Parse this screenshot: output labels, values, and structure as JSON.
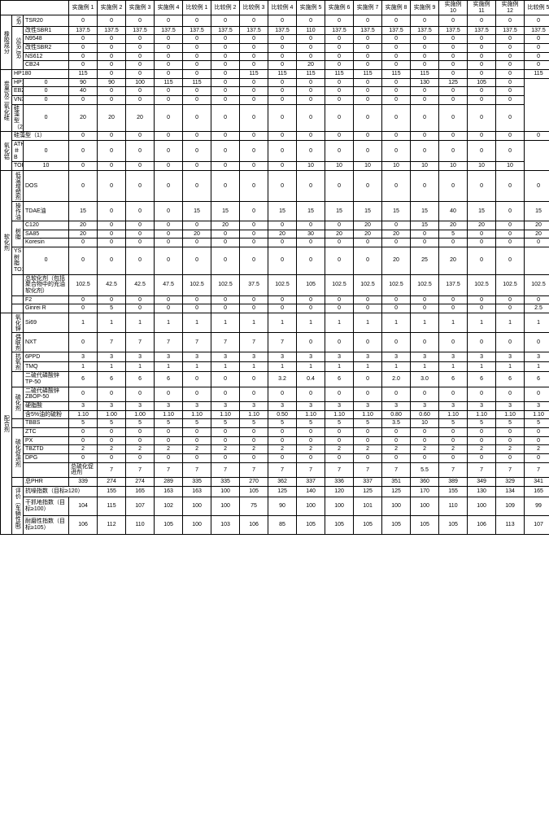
{
  "columns": [
    "实施例 1",
    "实施例 2",
    "实施例 3",
    "实施例 4",
    "比较例 1",
    "比较例 2",
    "比较例 3",
    "比较例 4",
    "实施例 5",
    "实施例 6",
    "实施例 7",
    "实施例 8",
    "实施例 9",
    "实施例 10",
    "实施例 11",
    "实施例 12",
    "比较例 5"
  ],
  "sections": [
    {
      "cat": "橡胶成分",
      "catSpan": 6,
      "group": "NR",
      "groupSpan": 1,
      "label": "TSR20",
      "vals": [
        "0",
        "0",
        "0",
        "0",
        "0",
        "0",
        "0",
        "0",
        "0",
        "0",
        "0",
        "0",
        "0",
        "0",
        "0",
        "0",
        "0"
      ]
    },
    {
      "group": "SBR,BR",
      "groupSpan": 5,
      "label": "改性SBR1",
      "vals": [
        "137.5",
        "137.5",
        "137.5",
        "137.5",
        "137.5",
        "137.5",
        "137.5",
        "137.5",
        "110",
        "137.5",
        "137.5",
        "137.5",
        "137.5",
        "137.5",
        "137.5",
        "137.5",
        "137.5"
      ]
    },
    {
      "label": "N9548",
      "vals": [
        "0",
        "0",
        "0",
        "0",
        "0",
        "0",
        "0",
        "0",
        "0",
        "0",
        "0",
        "0",
        "0",
        "0",
        "0",
        "0",
        "0"
      ]
    },
    {
      "label": "改性SBR2",
      "vals": [
        "0",
        "0",
        "0",
        "0",
        "0",
        "0",
        "0",
        "0",
        "0",
        "0",
        "0",
        "0",
        "0",
        "0",
        "0",
        "0",
        "0"
      ]
    },
    {
      "label": "NS612",
      "vals": [
        "0",
        "0",
        "0",
        "0",
        "0",
        "0",
        "0",
        "0",
        "0",
        "0",
        "0",
        "0",
        "0",
        "0",
        "0",
        "0",
        "0"
      ]
    },
    {
      "label": "CB24",
      "vals": [
        "0",
        "0",
        "0",
        "0",
        "0",
        "0",
        "0",
        "0",
        "20",
        "0",
        "0",
        "0",
        "0",
        "0",
        "0",
        "0",
        "0"
      ]
    },
    {
      "cat": "炭黑及二氧化硅",
      "catSpan": 5,
      "label": "HP180",
      "vals": [
        "115",
        "0",
        "0",
        "0",
        "0",
        "0",
        "115",
        "115",
        "115",
        "115",
        "115",
        "115",
        "115",
        "0",
        "0",
        "0",
        "115"
      ]
    },
    {
      "label": "HP160",
      "vals": [
        "0",
        "90",
        "90",
        "100",
        "115",
        "115",
        "0",
        "0",
        "0",
        "0",
        "0",
        "0",
        "0",
        "130",
        "125",
        "105",
        "0"
      ]
    },
    {
      "label": "EB201",
      "vals": [
        "0",
        "40",
        "0",
        "0",
        "0",
        "0",
        "0",
        "0",
        "0",
        "0",
        "0",
        "0",
        "0",
        "0",
        "0",
        "0",
        "0"
      ]
    },
    {
      "label": "VN3",
      "vals": [
        "0",
        "0",
        "0",
        "0",
        "0",
        "0",
        "0",
        "0",
        "0",
        "0",
        "0",
        "0",
        "0",
        "0",
        "0",
        "0",
        "0"
      ]
    },
    {
      "label": "硅藻型（2）",
      "vals": [
        "0",
        "20",
        "20",
        "20",
        "0",
        "0",
        "0",
        "0",
        "0",
        "0",
        "0",
        "0",
        "0",
        "0",
        "0",
        "0",
        "0"
      ]
    },
    {
      "cat": "氧化铝",
      "catSpan": 3,
      "label": "硅藻型（1）",
      "vals": [
        "0",
        "0",
        "0",
        "0",
        "0",
        "0",
        "0",
        "0",
        "0",
        "0",
        "0",
        "0",
        "0",
        "0",
        "0",
        "0",
        "0"
      ]
    },
    {
      "label": "ATH＃B",
      "vals": [
        "0",
        "0",
        "0",
        "0",
        "0",
        "0",
        "0",
        "0",
        "0",
        "0",
        "0",
        "0",
        "0",
        "0",
        "0",
        "0",
        "0"
      ]
    },
    {
      "label": "TOP",
      "vals": [
        "10",
        "0",
        "0",
        "0",
        "0",
        "0",
        "0",
        "0",
        "0",
        "10",
        "10",
        "10",
        "10",
        "10",
        "10",
        "10",
        "10"
      ]
    },
    {
      "cat": "软化剂",
      "catSpan": 9,
      "group": "低温增塑剂",
      "groupSpan": 1,
      "label": "DOS",
      "vals": [
        "0",
        "0",
        "0",
        "0",
        "0",
        "0",
        "0",
        "0",
        "0",
        "0",
        "0",
        "0",
        "0",
        "0",
        "0",
        "0",
        "0"
      ]
    },
    {
      "group": "操作油",
      "groupSpan": 1,
      "label": "TDAE油",
      "vals": [
        "15",
        "0",
        "0",
        "0",
        "15",
        "15",
        "0",
        "15",
        "15",
        "15",
        "15",
        "15",
        "15",
        "40",
        "15",
        "0",
        "15"
      ]
    },
    {
      "group": "树脂",
      "groupSpan": 3,
      "label": "C120",
      "vals": [
        "20",
        "0",
        "0",
        "0",
        "0",
        "20",
        "0",
        "0",
        "0",
        "0",
        "20",
        "0",
        "15",
        "20",
        "20",
        "0",
        "20"
      ]
    },
    {
      "label": "SA85",
      "vals": [
        "20",
        "0",
        "0",
        "0",
        "20",
        "0",
        "0",
        "20",
        "30",
        "20",
        "20",
        "20",
        "0",
        "5",
        "0",
        "0",
        "20"
      ]
    },
    {
      "label": "Koresin",
      "vals": [
        "0",
        "0",
        "0",
        "0",
        "0",
        "0",
        "0",
        "0",
        "0",
        "0",
        "0",
        "0",
        "0",
        "0",
        "0",
        "0",
        "0"
      ]
    },
    {
      "label": "YS树脂TO125",
      "vals": [
        "0",
        "0",
        "0",
        "0",
        "0",
        "0",
        "0",
        "0",
        "0",
        "0",
        "0",
        "0",
        "20",
        "25",
        "20",
        "0",
        "0"
      ]
    },
    {
      "group": "",
      "groupSpan": 1,
      "label": "总软化剂（包括聚合物中的充油软化剂）",
      "vals": [
        "102.5",
        "42.5",
        "42.5",
        "47.5",
        "102.5",
        "102.5",
        "37.5",
        "102.5",
        "105",
        "102.5",
        "102.5",
        "102.5",
        "102.5",
        "137.5",
        "102.5",
        "102.5",
        "102.5"
      ]
    },
    {
      "group": "",
      "groupSpan": 1,
      "label": "F2",
      "vals": [
        "0",
        "0",
        "0",
        "0",
        "0",
        "0",
        "0",
        "0",
        "0",
        "0",
        "0",
        "0",
        "0",
        "0",
        "0",
        "0",
        "0"
      ]
    },
    {
      "group": "",
      "groupSpan": 1,
      "label": "Ginrei R",
      "vals": [
        "0",
        "5",
        "0",
        "0",
        "0",
        "0",
        "0",
        "0",
        "0",
        "0",
        "0",
        "0",
        "0",
        "0",
        "0",
        "0",
        "2.5"
      ]
    },
    {
      "cat": "配合剂",
      "catSpan": 18,
      "group": "氧化锌",
      "groupSpan": 1,
      "label": "Si69",
      "vals": [
        "1",
        "1",
        "1",
        "1",
        "1",
        "1",
        "1",
        "1",
        "1",
        "1",
        "1",
        "1",
        "1",
        "1",
        "1",
        "1",
        "1"
      ]
    },
    {
      "group": "偶联剂",
      "groupSpan": 1,
      "label": "NXT",
      "vals": [
        "0",
        "7",
        "7",
        "7",
        "7",
        "7",
        "7",
        "7",
        "0",
        "0",
        "0",
        "0",
        "0",
        "0",
        "0",
        "0",
        "0"
      ]
    },
    {
      "group": "抗氧剂",
      "groupSpan": 2,
      "label": "6PPD",
      "vals": [
        "3",
        "3",
        "3",
        "3",
        "3",
        "3",
        "3",
        "3",
        "3",
        "3",
        "3",
        "3",
        "3",
        "3",
        "3",
        "3",
        "3"
      ]
    },
    {
      "label": "TMQ",
      "vals": [
        "1",
        "1",
        "1",
        "1",
        "1",
        "1",
        "1",
        "1",
        "1",
        "1",
        "1",
        "1",
        "1",
        "1",
        "1",
        "1",
        "1"
      ]
    },
    {
      "group": "",
      "groupSpan": 1,
      "label": "二硫代磷酸锌TP-50",
      "vals": [
        "6",
        "6",
        "6",
        "6",
        "0",
        "0",
        "0",
        "3.2",
        "0.4",
        "6",
        "0",
        "2.0",
        "3.0",
        "6",
        "6",
        "6",
        "6"
      ]
    },
    {
      "group": "硫化剂",
      "groupSpan": 3,
      "label": "二硫代磷酸锌ZBOP-50",
      "vals": [
        "0",
        "0",
        "0",
        "0",
        "0",
        "0",
        "0",
        "0",
        "0",
        "0",
        "0",
        "0",
        "0",
        "0",
        "0",
        "0",
        "0"
      ]
    },
    {
      "label": "硬脂酸",
      "vals": [
        "3",
        "3",
        "3",
        "3",
        "3",
        "3",
        "3",
        "3",
        "3",
        "3",
        "3",
        "3",
        "3",
        "3",
        "3",
        "3",
        "3"
      ]
    },
    {
      "label": "含5%油的硫粉",
      "vals": [
        "1.10",
        "1.00",
        "1.00",
        "1.10",
        "1.10",
        "1.10",
        "1.10",
        "0.50",
        "1.10",
        "1.10",
        "1.10",
        "0.80",
        "0.60",
        "1.10",
        "1.10",
        "1.10",
        "1.10"
      ]
    },
    {
      "group": "",
      "groupSpan": 1,
      "label": "TBBS",
      "vals": [
        "5",
        "5",
        "5",
        "5",
        "5",
        "5",
        "5",
        "5",
        "5",
        "5",
        "5",
        "3.5",
        "10",
        "5",
        "5",
        "5",
        "5"
      ]
    },
    {
      "group": "硫化促进剂",
      "groupSpan": 5,
      "label": "ZTC",
      "vals": [
        "0",
        "0",
        "0",
        "0",
        "0",
        "0",
        "0",
        "0",
        "0",
        "0",
        "0",
        "0",
        "0",
        "0",
        "0",
        "0",
        "0"
      ]
    },
    {
      "label": "PX",
      "vals": [
        "0",
        "0",
        "0",
        "0",
        "0",
        "0",
        "0",
        "0",
        "0",
        "0",
        "0",
        "0",
        "0",
        "0",
        "0",
        "0",
        "0"
      ]
    },
    {
      "label": "TBZTD",
      "vals": [
        "2",
        "2",
        "2",
        "2",
        "2",
        "2",
        "2",
        "2",
        "2",
        "2",
        "2",
        "2",
        "2",
        "2",
        "2",
        "2",
        "2"
      ]
    },
    {
      "label": "DPG",
      "vals": [
        "0",
        "0",
        "0",
        "0",
        "0",
        "0",
        "0",
        "0",
        "0",
        "0",
        "0",
        "0",
        "0",
        "0",
        "0",
        "0",
        "0"
      ]
    },
    {
      "group": "",
      "groupSpan": 1,
      "label": "总硫化促进剂",
      "vals": [
        "7",
        "7",
        "7",
        "7",
        "7",
        "7",
        "7",
        "7",
        "7",
        "7",
        "7",
        "5.5",
        "7",
        "7",
        "7",
        "7",
        "7"
      ]
    },
    {
      "group": "",
      "groupSpan": 1,
      "label": "总PHR",
      "vals": [
        "339",
        "274",
        "274",
        "289",
        "335",
        "335",
        "270",
        "362",
        "337",
        "336",
        "337",
        "351",
        "360",
        "389",
        "349",
        "329",
        "341"
      ]
    },
    {
      "cat": "评价（车辆性能）",
      "catSpan": 3,
      "label": "抗噪指数（目标≥120）",
      "vals": [
        "155",
        "165",
        "163",
        "163",
        "100",
        "105",
        "125",
        "140",
        "120",
        "125",
        "125",
        "170",
        "155",
        "130",
        "134",
        "165",
        "125"
      ]
    },
    {
      "label": "干抓地指数（目标≥100）",
      "vals": [
        "104",
        "115",
        "107",
        "102",
        "100",
        "100",
        "75",
        "90",
        "100",
        "100",
        "101",
        "100",
        "100",
        "110",
        "100",
        "109",
        "99"
      ]
    },
    {
      "label": "耐磨性指数（目标≥105）",
      "vals": [
        "106",
        "112",
        "110",
        "105",
        "100",
        "103",
        "106",
        "85",
        "105",
        "105",
        "105",
        "105",
        "105",
        "105",
        "106",
        "113",
        "107"
      ]
    }
  ]
}
